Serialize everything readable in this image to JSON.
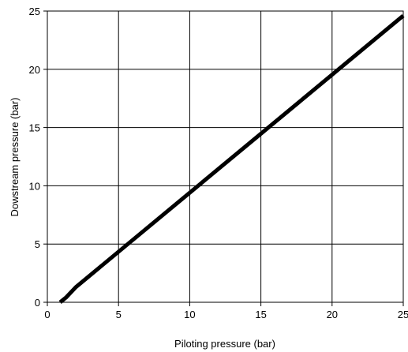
{
  "chart_data": {
    "type": "line",
    "xlabel": "Piloting pressure (bar)",
    "ylabel": "Dowstream pressure (bar)",
    "xlim": [
      0,
      25
    ],
    "ylim": [
      0,
      25
    ],
    "xticks": [
      "0",
      "5",
      "10",
      "15",
      "20",
      "25"
    ],
    "yticks": [
      "0",
      "5",
      "10",
      "15",
      "20",
      "25"
    ],
    "grid": true,
    "series": [
      {
        "x": [
          0.9,
          1.3,
          2.0,
          25.0
        ],
        "y": [
          0.0,
          0.4,
          1.3,
          24.6
        ],
        "color": "#000000"
      }
    ]
  }
}
